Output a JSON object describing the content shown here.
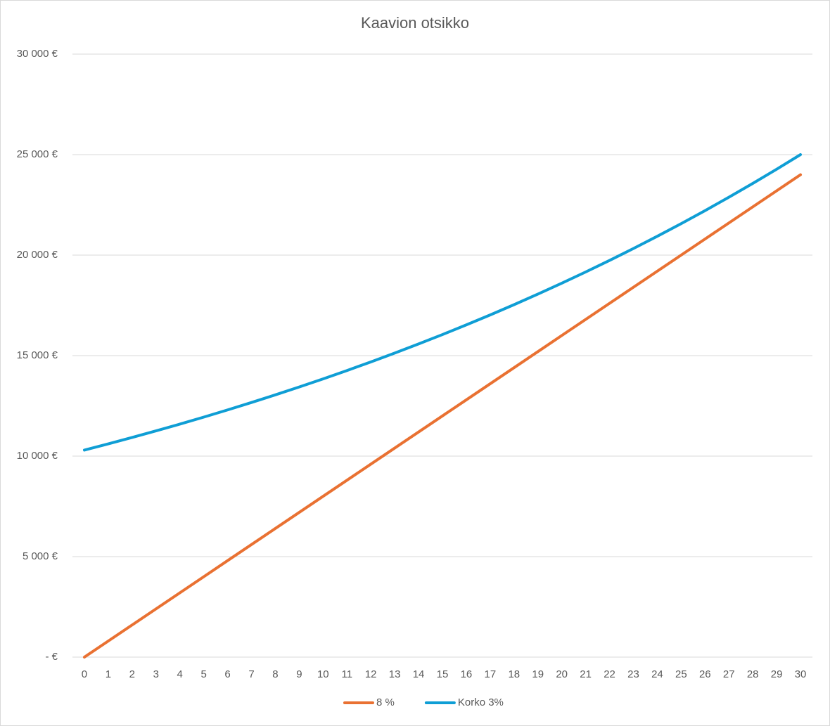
{
  "chart_data": {
    "type": "line",
    "title": "Kaavion otsikko",
    "categories": [
      0,
      1,
      2,
      3,
      4,
      5,
      6,
      7,
      8,
      9,
      10,
      11,
      12,
      13,
      14,
      15,
      16,
      17,
      18,
      19,
      20,
      21,
      22,
      23,
      24,
      25,
      26,
      27,
      28,
      29,
      30
    ],
    "series": [
      {
        "name": "8 %",
        "color": "#e97132",
        "values": [
          0,
          800,
          1600,
          2400,
          3200,
          4000,
          4800,
          5600,
          6400,
          7200,
          8000,
          8800,
          9600,
          10400,
          11200,
          12000,
          12800,
          13600,
          14400,
          15200,
          16000,
          16800,
          17600,
          18400,
          19200,
          20000,
          20800,
          21600,
          22400,
          23200,
          24000
        ]
      },
      {
        "name": "Korko 3%",
        "color": "#0f9ed5",
        "values": [
          10300,
          10609,
          10927,
          11255,
          11593,
          11941,
          12299,
          12668,
          13048,
          13439,
          13842,
          14258,
          14685,
          15126,
          15580,
          16047,
          16529,
          17024,
          17535,
          18061,
          18603,
          19161,
          19736,
          20328,
          20938,
          21566,
          22213,
          22880,
          23566,
          24273,
          25000
        ]
      }
    ],
    "ylim": [
      0,
      30000
    ],
    "yticks": [
      {
        "value": 0,
        "label": "-  €"
      },
      {
        "value": 5000,
        "label": "5 000 €"
      },
      {
        "value": 10000,
        "label": "10 000 €"
      },
      {
        "value": 15000,
        "label": "15 000 €"
      },
      {
        "value": 20000,
        "label": "20 000 €"
      },
      {
        "value": 25000,
        "label": "25 000 €"
      },
      {
        "value": 30000,
        "label": "30 000 €"
      }
    ],
    "grid": true,
    "legend": "bottom"
  }
}
